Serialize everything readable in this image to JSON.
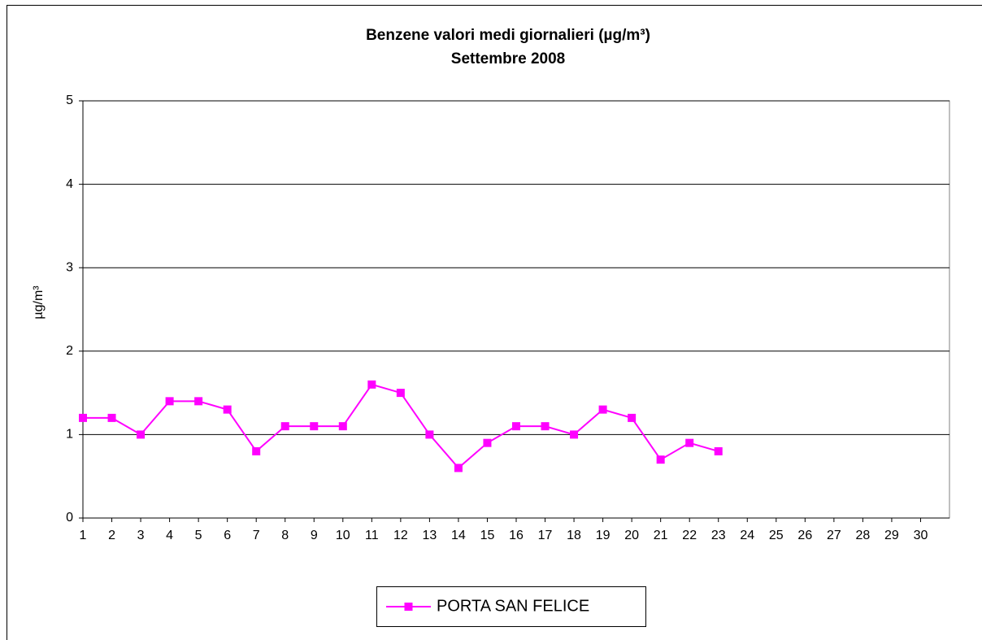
{
  "chart_data": {
    "type": "line",
    "title": "Benzene valori medi giornalieri (µg/m³)",
    "subtitle": "Settembre 2008",
    "y_label": "µg/m³",
    "categories": [
      "1",
      "2",
      "3",
      "4",
      "5",
      "6",
      "7",
      "8",
      "9",
      "10",
      "11",
      "12",
      "13",
      "14",
      "15",
      "16",
      "17",
      "18",
      "19",
      "20",
      "21",
      "22",
      "23",
      "24",
      "25",
      "26",
      "27",
      "28",
      "29",
      "30"
    ],
    "series": [
      {
        "name": "PORTA SAN FELICE",
        "color": "#ff00ff",
        "values": [
          1.2,
          1.2,
          1.0,
          1.4,
          1.4,
          1.3,
          0.8,
          1.1,
          1.1,
          1.1,
          1.6,
          1.5,
          1.0,
          0.6,
          0.9,
          1.1,
          1.1,
          1.0,
          1.3,
          1.2,
          0.7,
          0.9,
          0.8,
          null,
          null,
          null,
          null,
          null,
          null,
          null
        ]
      }
    ],
    "ylim": [
      0,
      5
    ],
    "yticks": [
      0,
      1,
      2,
      3,
      4,
      5
    ],
    "grid": true,
    "legend": "bottom"
  }
}
